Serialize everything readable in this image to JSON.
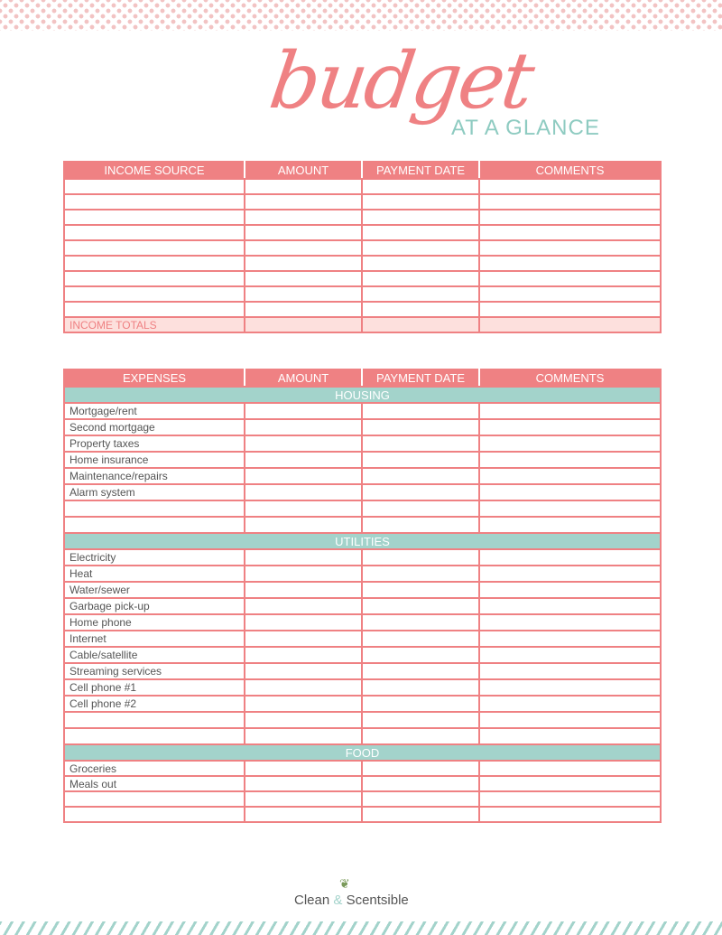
{
  "header": {
    "title_script": "budget",
    "title_sub": "AT A GLANCE"
  },
  "income": {
    "columns": [
      "INCOME SOURCE",
      "AMOUNT",
      "PAYMENT DATE",
      "COMMENTS"
    ],
    "blank_rows": 9,
    "totals_label": "INCOME TOTALS"
  },
  "expenses": {
    "columns": [
      "EXPENSES",
      "AMOUNT",
      "PAYMENT DATE",
      "COMMENTS"
    ],
    "sections": [
      {
        "name": "HOUSING",
        "items": [
          "Mortgage/rent",
          "Second mortgage",
          "Property taxes",
          "Home insurance",
          "Maintenance/repairs",
          "Alarm system",
          "",
          ""
        ]
      },
      {
        "name": "UTILITIES",
        "items": [
          "Electricity",
          "Heat",
          "Water/sewer",
          "Garbage pick-up",
          "Home phone",
          "Internet",
          "Cable/satellite",
          "Streaming services",
          "Cell phone #1",
          "Cell phone #2",
          "",
          ""
        ]
      },
      {
        "name": "FOOD",
        "items": [
          "Groceries",
          "Meals out",
          "",
          ""
        ]
      }
    ]
  },
  "footer": {
    "brand_part1": "Clean",
    "brand_amp": "&",
    "brand_part2": "Scentsible"
  },
  "colors": {
    "coral": "#ef8183",
    "teal": "#a3d3cb",
    "pink_light": "#fde0dd"
  }
}
